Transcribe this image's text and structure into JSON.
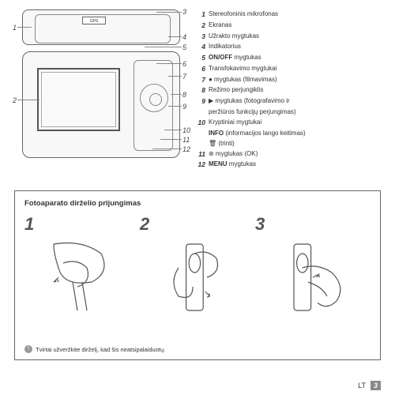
{
  "gpsLabel": "GPS",
  "labels": {
    "l1": "1",
    "l2": "2",
    "l3": "3",
    "l4": "4",
    "l5": "5",
    "l6": "6",
    "l7": "7",
    "l8": "8",
    "l9": "9",
    "l10": "10",
    "l11": "11",
    "l12": "12"
  },
  "legend": [
    {
      "n": "1",
      "t": "Stereofoninis mikrofonas"
    },
    {
      "n": "2",
      "t": "Ekranas"
    },
    {
      "n": "3",
      "t": "Užrakto mygtukas"
    },
    {
      "n": "4",
      "t": "Indikatorius"
    },
    {
      "n": "5",
      "t": "ON/OFF mygtukas",
      "bold": "ON/OFF"
    },
    {
      "n": "6",
      "t": "Transfokavimo mygtukai"
    },
    {
      "n": "7",
      "t": "● mygtukas (filmavimas)"
    },
    {
      "n": "8",
      "t": "Režimo perjungiklis"
    },
    {
      "n": "9",
      "t": "▶ mygtukas (fotografavimo ir"
    },
    {
      "n": "",
      "t": "peržiūros funkcijų perjungimas)",
      "indent": true
    },
    {
      "n": "10",
      "t": "Kryptiniai mygtukai"
    },
    {
      "n": "",
      "t": "INFO (informacijos lango keitimas)",
      "indent": true,
      "bold": "INFO"
    },
    {
      "n": "",
      "t": "🗑 (trinti)",
      "indent": true
    },
    {
      "n": "11",
      "t": "⊛ mygtukas (OK)"
    },
    {
      "n": "12",
      "t": "MENU mygtukas",
      "bold": "MENU"
    }
  ],
  "strapTitle": "Fotoaparato dirželio prijungimas",
  "steps": {
    "s1": "1",
    "s2": "2",
    "s3": "3"
  },
  "warning": "Tvirtai užveržkite dirželį, kad šis neatsipalaiduotų.",
  "footerLang": "LT",
  "footerPage": "3"
}
